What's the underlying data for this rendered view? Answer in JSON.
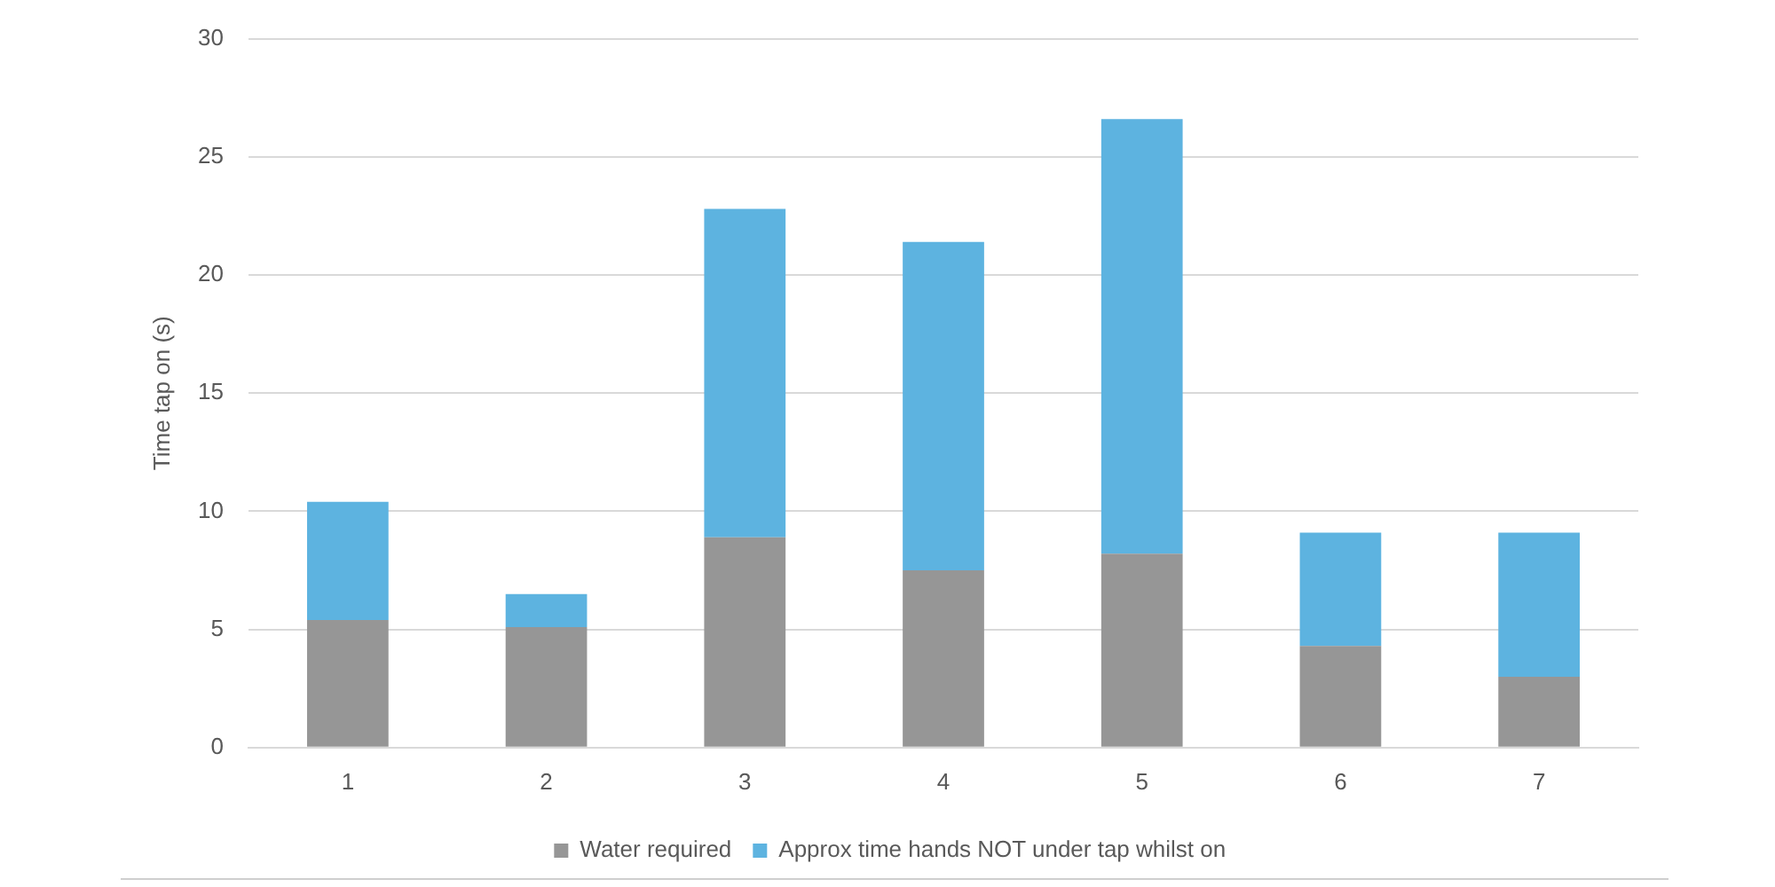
{
  "chart_data": {
    "type": "bar",
    "ylabel": "Time tap on (s)",
    "categories": [
      "1",
      "2",
      "3",
      "4",
      "5",
      "6",
      "7"
    ],
    "stacked": true,
    "series": [
      {
        "name": "Water required",
        "color": "#969696",
        "values": [
          5.4,
          5.1,
          8.9,
          7.5,
          8.2,
          4.3,
          3.0
        ]
      },
      {
        "name": "Approx time hands NOT under tap whilst on",
        "color": "#5db3e0",
        "values": [
          5.0,
          1.4,
          13.9,
          13.9,
          18.4,
          4.8,
          6.1
        ]
      }
    ],
    "ylim": [
      0,
      30
    ],
    "yticks": [
      0,
      5,
      10,
      15,
      20,
      25,
      30
    ],
    "grid": "y",
    "legend": "bottom"
  }
}
